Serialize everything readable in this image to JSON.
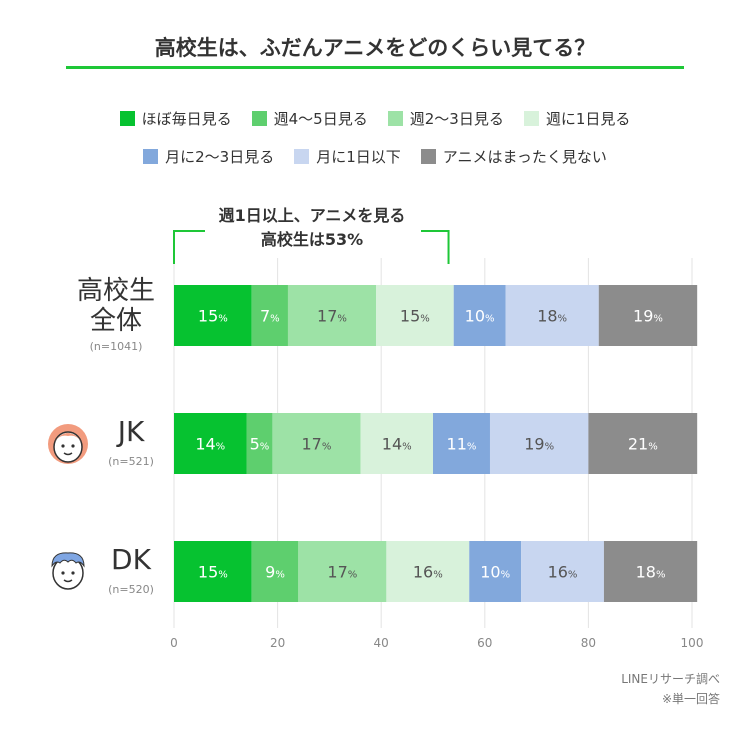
{
  "title": "高校生は、ふだんアニメをどのくらい見てる？",
  "legend": {
    "row1": [
      {
        "label": "ほぼ毎日見る",
        "color": "#06c230"
      },
      {
        "label": "週4〜5日見る",
        "color": "#5ecf6e"
      },
      {
        "label": "週2〜3日見る",
        "color": "#9de2a6"
      },
      {
        "label": "週に1日見る",
        "color": "#d8f2db"
      }
    ],
    "row2": [
      {
        "label": "月に2〜3日見る",
        "color": "#82a8dc"
      },
      {
        "label": "月に1日以下",
        "color": "#c8d6f0"
      },
      {
        "label": "アニメはまったく見ない",
        "color": "#8c8c8c"
      }
    ]
  },
  "annotation": {
    "line1": "週1日以上、アニメを見る",
    "line2": "高校生は53%"
  },
  "groups": [
    {
      "name_line1": "高校生",
      "name_line2": "全体",
      "n": "(n=1041)",
      "icon": ""
    },
    {
      "name_line1": "JK",
      "name_line2": "",
      "n": "(n=521)",
      "icon": "girl-face-icon"
    },
    {
      "name_line1": "DK",
      "name_line2": "",
      "n": "(n=520)",
      "icon": "boy-face-icon"
    }
  ],
  "source": {
    "line1": "LINEリサーチ調べ",
    "line2": "※単一回答"
  },
  "chart_data": {
    "type": "bar",
    "orientation": "horizontal-stacked",
    "categories": [
      "高校生全体",
      "JK",
      "DK"
    ],
    "series": [
      {
        "name": "ほぼ毎日見る",
        "color": "#06c230",
        "values": [
          15,
          14,
          15
        ],
        "label_color": "#ffffff"
      },
      {
        "name": "週4〜5日見る",
        "color": "#5ecf6e",
        "values": [
          7,
          5,
          9
        ],
        "label_color": "#ffffff"
      },
      {
        "name": "週2〜3日見る",
        "color": "#9de2a6",
        "values": [
          17,
          17,
          17
        ],
        "label_color": "#555555"
      },
      {
        "name": "週に1日見る",
        "color": "#d8f2db",
        "values": [
          15,
          14,
          16
        ],
        "label_color": "#555555"
      },
      {
        "name": "月に2〜3日見る",
        "color": "#82a8dc",
        "values": [
          10,
          11,
          10
        ],
        "label_color": "#ffffff"
      },
      {
        "name": "月に1日以下",
        "color": "#c8d6f0",
        "values": [
          18,
          19,
          16
        ],
        "label_color": "#555555"
      },
      {
        "name": "アニメはまったく見ない",
        "color": "#8c8c8c",
        "values": [
          19,
          21,
          18
        ],
        "label_color": "#ffffff"
      }
    ],
    "xlim": [
      0,
      100
    ],
    "xticks": [
      "0",
      "20",
      "40",
      "60",
      "80",
      "100"
    ],
    "label_suffix": "%",
    "bracket_range": [
      0,
      53
    ],
    "grid": true
  }
}
